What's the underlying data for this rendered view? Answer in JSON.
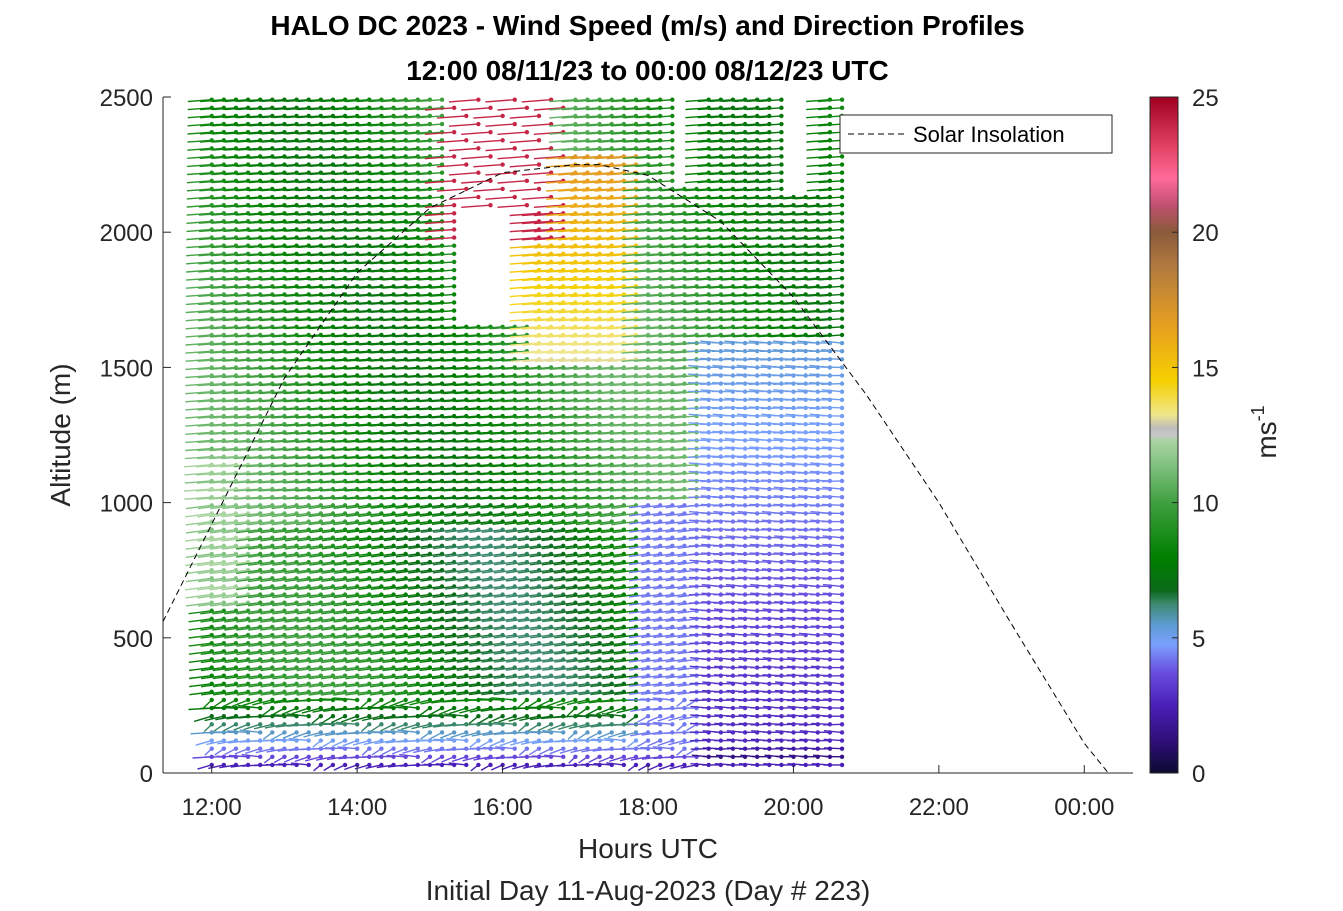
{
  "chart_data": {
    "type": "wind-barb-profile",
    "title": "HALO DC 2023 - Wind Speed (m/s) and Direction Profiles",
    "subtitle": "12:00 08/11/23 to 00:00 08/12/23  UTC",
    "xlabel": "Hours UTC",
    "xlabel2": "Initial Day 11-Aug-2023 (Day # 223)",
    "ylabel": "Altitude (m)",
    "x_ticks": [
      "12:00",
      "14:00",
      "16:00",
      "18:00",
      "20:00",
      "22:00",
      "00:00"
    ],
    "x_tick_hours": [
      12,
      14,
      16,
      18,
      20,
      22,
      24
    ],
    "xlim": [
      11.33,
      24.67
    ],
    "y_ticks": [
      "0",
      "500",
      "1000",
      "1500",
      "2000",
      "2500"
    ],
    "y_tick_values": [
      0,
      500,
      1000,
      1500,
      2000,
      2500
    ],
    "ylim": [
      0,
      2500
    ],
    "colorbar": {
      "label": "ms",
      "label_exponent": "-1",
      "ticks": [
        "0",
        "5",
        "10",
        "15",
        "20",
        "25"
      ],
      "tick_values": [
        0,
        5,
        10,
        15,
        20,
        25
      ],
      "range": [
        0,
        25
      ]
    },
    "legend": {
      "entries": [
        "Solar Insolation"
      ],
      "placement": "top-right"
    },
    "series": [
      {
        "name": "Solar Insolation",
        "style": "dashed-black",
        "x_hours": [
          11.33,
          12,
          13,
          14,
          15,
          16,
          17,
          17.33,
          18,
          19,
          20,
          21,
          22,
          23,
          24,
          24.33
        ],
        "y_altitude": [
          560,
          920,
          1460,
          1850,
          2090,
          2220,
          2250,
          2250,
          2210,
          2040,
          1760,
          1400,
          1000,
          550,
          110,
          0
        ]
      }
    ],
    "profiles": {
      "time_start_hour": 12.0,
      "time_step_hours": 0.1667,
      "time_count": 53,
      "altitude_start_m": 30,
      "altitude_step_m": 30,
      "altitude_top_m": 2500,
      "notes_missing": "Data gaps near 15:30-16:40 between 1700 and 2100 m; sparse above 2300 m after 16:00"
    }
  }
}
